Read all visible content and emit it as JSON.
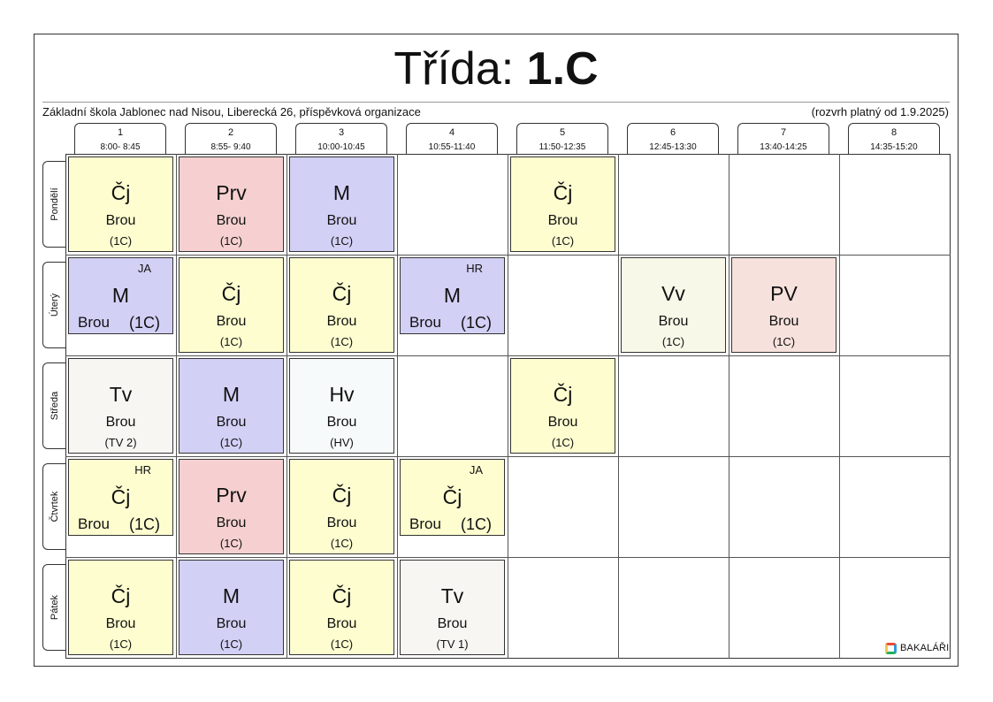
{
  "title": {
    "label": "Třída:",
    "class_name": "1.C"
  },
  "school": "Základní škola Jablonec nad Nisou, Liberecká 26, příspěvková organizace",
  "validity": "(rozvrh platný od 1.9.2025)",
  "periods": [
    {
      "num": "1",
      "time": "8:00- 8:45"
    },
    {
      "num": "2",
      "time": "8:55- 9:40"
    },
    {
      "num": "3",
      "time": "10:00-10:45"
    },
    {
      "num": "4",
      "time": "10:55-11:40"
    },
    {
      "num": "5",
      "time": "11:50-12:35"
    },
    {
      "num": "6",
      "time": "12:45-13:30"
    },
    {
      "num": "7",
      "time": "13:40-14:25"
    },
    {
      "num": "8",
      "time": "14:35-15:20"
    }
  ],
  "days": [
    "Pondělí",
    "Úterý",
    "Středa",
    "Čtvrtek",
    "Pátek"
  ],
  "colors": {
    "cj": "#fdfdd0",
    "m": "#d2d0f5",
    "prv": "#f6d0d0",
    "vv": "#f7f8e8",
    "pv": "#f6e1dc",
    "tv": "#f8f6f2",
    "hv": "#f7fafa"
  },
  "lessons": [
    {
      "day": 0,
      "period": 0,
      "subject": "Čj",
      "teacher": "Brou",
      "group": "(1C)",
      "color": "cj"
    },
    {
      "day": 0,
      "period": 1,
      "subject": "Prv",
      "teacher": "Brou",
      "group": "(1C)",
      "color": "prv"
    },
    {
      "day": 0,
      "period": 2,
      "subject": "M",
      "teacher": "Brou",
      "group": "(1C)",
      "color": "m"
    },
    {
      "day": 0,
      "period": 4,
      "subject": "Čj",
      "teacher": "Brou",
      "group": "(1C)",
      "color": "cj"
    },
    {
      "day": 1,
      "period": 0,
      "subject": "M",
      "teacher": "Brou",
      "group": "(1C)",
      "room": "JA",
      "color": "m"
    },
    {
      "day": 1,
      "period": 1,
      "subject": "Čj",
      "teacher": "Brou",
      "group": "(1C)",
      "color": "cj"
    },
    {
      "day": 1,
      "period": 2,
      "subject": "Čj",
      "teacher": "Brou",
      "group": "(1C)",
      "color": "cj"
    },
    {
      "day": 1,
      "period": 3,
      "subject": "M",
      "teacher": "Brou",
      "group": "(1C)",
      "room": "HR",
      "color": "m"
    },
    {
      "day": 1,
      "period": 5,
      "subject": "Vv",
      "teacher": "Brou",
      "group": "(1C)",
      "color": "vv"
    },
    {
      "day": 1,
      "period": 6,
      "subject": "PV",
      "teacher": "Brou",
      "group": "(1C)",
      "color": "pv"
    },
    {
      "day": 2,
      "period": 0,
      "subject": "Tv",
      "teacher": "Brou",
      "group": "(TV 2)",
      "color": "tv"
    },
    {
      "day": 2,
      "period": 1,
      "subject": "M",
      "teacher": "Brou",
      "group": "(1C)",
      "color": "m"
    },
    {
      "day": 2,
      "period": 2,
      "subject": "Hv",
      "teacher": "Brou",
      "group": "(HV)",
      "color": "hv"
    },
    {
      "day": 2,
      "period": 4,
      "subject": "Čj",
      "teacher": "Brou",
      "group": "(1C)",
      "color": "cj"
    },
    {
      "day": 3,
      "period": 0,
      "subject": "Čj",
      "teacher": "Brou",
      "group": "(1C)",
      "room": "HR",
      "color": "cj"
    },
    {
      "day": 3,
      "period": 1,
      "subject": "Prv",
      "teacher": "Brou",
      "group": "(1C)",
      "color": "prv"
    },
    {
      "day": 3,
      "period": 2,
      "subject": "Čj",
      "teacher": "Brou",
      "group": "(1C)",
      "color": "cj"
    },
    {
      "day": 3,
      "period": 3,
      "subject": "Čj",
      "teacher": "Brou",
      "group": "(1C)",
      "room": "JA",
      "color": "cj"
    },
    {
      "day": 4,
      "period": 0,
      "subject": "Čj",
      "teacher": "Brou",
      "group": "(1C)",
      "color": "cj"
    },
    {
      "day": 4,
      "period": 1,
      "subject": "M",
      "teacher": "Brou",
      "group": "(1C)",
      "color": "m"
    },
    {
      "day": 4,
      "period": 2,
      "subject": "Čj",
      "teacher": "Brou",
      "group": "(1C)",
      "color": "cj"
    },
    {
      "day": 4,
      "period": 3,
      "subject": "Tv",
      "teacher": "Brou",
      "group": "(TV 1)",
      "color": "tv"
    }
  ],
  "logo": {
    "icon": "bakalari-logo-icon",
    "text": "BAKALÁŘI"
  }
}
